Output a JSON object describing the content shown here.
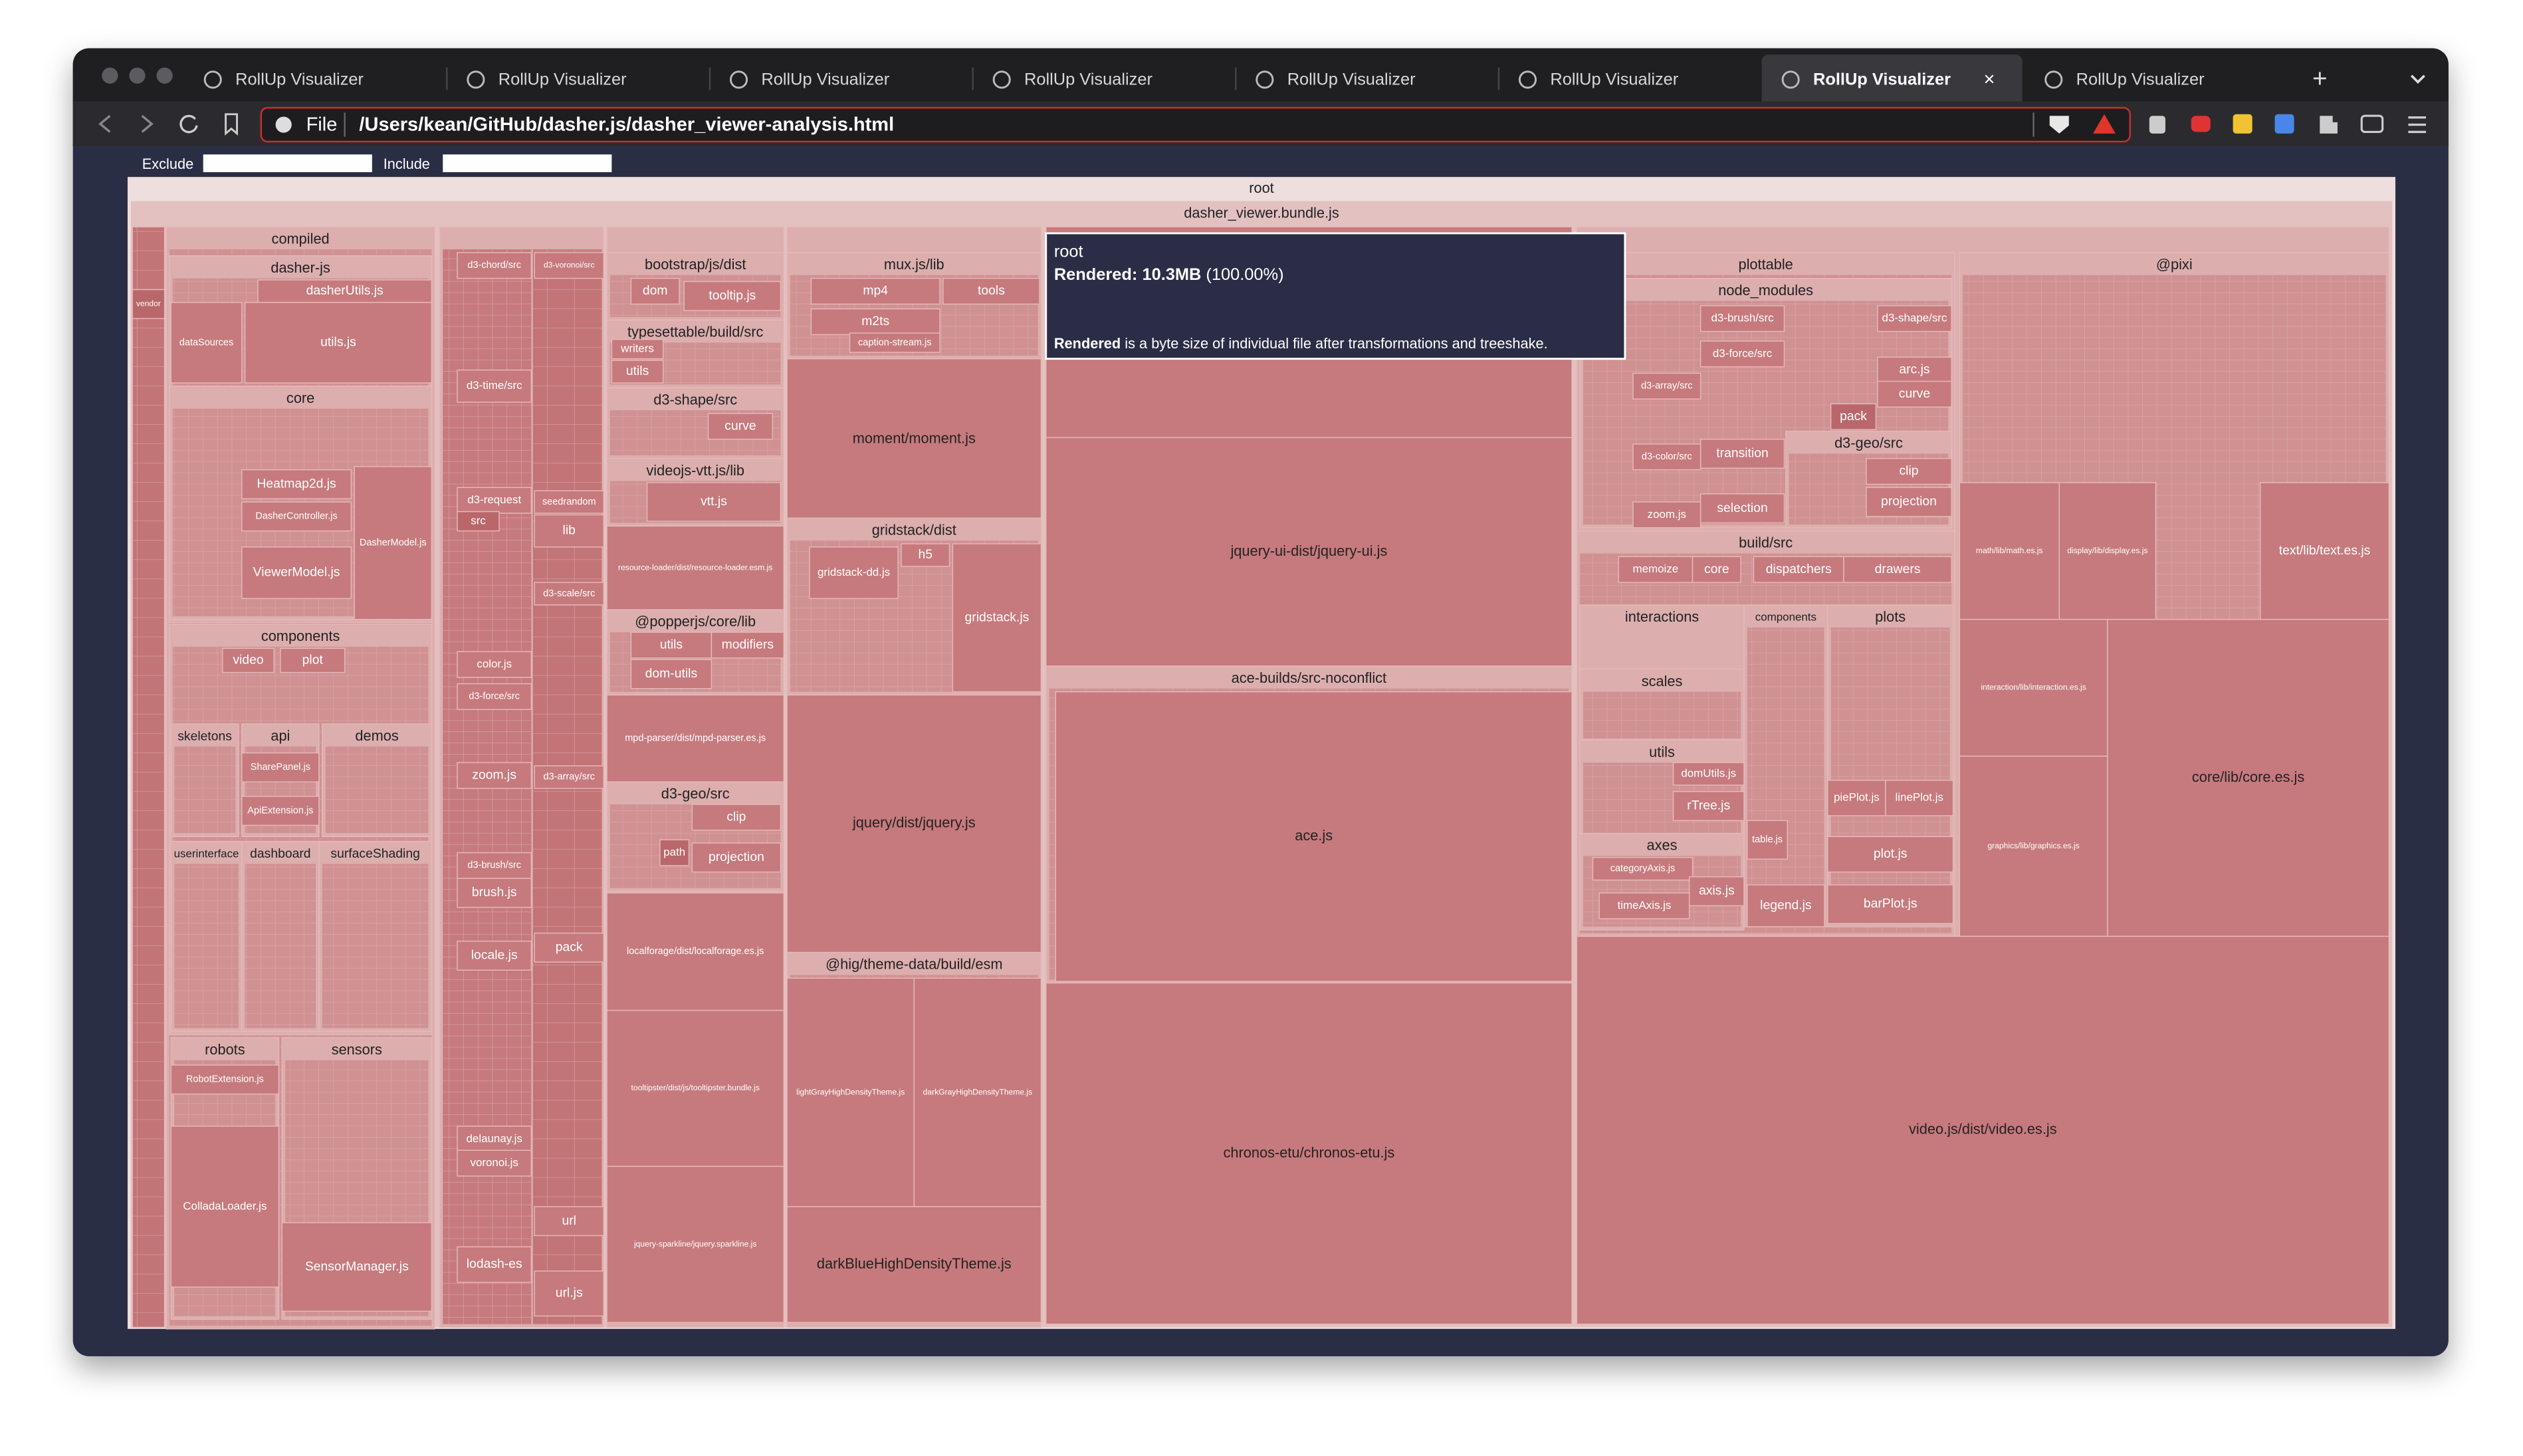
{
  "browser": {
    "tabs": [
      "RollUp Visualizer",
      "RollUp Visualizer",
      "RollUp Visualizer",
      "RollUp Visualizer",
      "RollUp Visualizer",
      "RollUp Visualizer",
      "RollUp Visualizer",
      "RollUp Visualizer"
    ],
    "address": {
      "scheme": "File",
      "path": "/Users/kean/GitHub/dasher.js/dasher_viewer-analysis.html"
    }
  },
  "filters": {
    "exclude": "Exclude",
    "include": "Include"
  },
  "treemap": {
    "root": "root",
    "bundle": "dasher_viewer.bundle.js",
    "nodes": [
      "compiled",
      "dasher-js",
      "dasherUtils.js",
      "dataSources",
      "utils.js",
      "core",
      "Heatmap2d.js",
      "DasherController.js",
      "ViewerModel.js",
      "DasherModel.js",
      "components",
      "video",
      "plot",
      "skeletons",
      "api",
      "SharePanel.js",
      "ApiExtension.js",
      "demos",
      "userinterface",
      "dashboard",
      "surfaceShading",
      "robots",
      "RobotExtension.js",
      "ColladaLoader.js",
      "sensors",
      "SensorManager.js",
      "d3-chord/src",
      "d3-voronoi/src",
      "d3-time/src",
      "d3-request",
      "src",
      "seedrandom",
      "lib",
      "d3-scale/src",
      "color.js",
      "d3-force/src",
      "zoom.js",
      "d3-array/src",
      "d3-brush/src",
      "brush.js",
      "locale.js",
      "pack",
      "delaunay.js",
      "voronoi.js",
      "url",
      "url.js",
      "lodash-es",
      "bootstrap/js/dist",
      "dom",
      "tooltip.js",
      "typesettable/build/src",
      "writers",
      "utils",
      "d3-shape/src",
      "curve",
      "videojs-vtt.js/lib",
      "vtt.js",
      "resource-loader/dist/resource-loader.esm.js",
      "@popperjs/core/lib",
      "utils",
      "modifiers",
      "dom-utils",
      "mpd-parser/dist/mpd-parser.es.js",
      "d3-geo/src",
      "clip",
      "path",
      "projection",
      "localforage/dist/localforage.es.js",
      "tooltipster/dist/js/tooltipster.bundle.js",
      "jquery-sparkline/jquery.sparkline.js",
      "mux.js/lib",
      "mp4",
      "tools",
      "m2ts",
      "caption-stream.js",
      "moment/moment.js",
      "gridstack/dist",
      "gridstack-dd.js",
      "h5",
      "gridstack.js",
      "jquery/dist/jquery.js",
      "@hig/theme-data/build/esm",
      "lightGrayHighDensityTheme.js",
      "darkGrayHighDensityTheme.js",
      "darkBlueHighDensityTheme.js",
      "jquery-ui-dist/jquery-ui.js",
      "ace-builds/src-noconflict",
      "ace.js",
      "chronos-etu/chronos-etu.js",
      "plottable",
      "node_modules",
      "d3-brush/src",
      "d3-shape/src",
      "d3-force/src",
      "arc.js",
      "d3-array/src",
      "curve",
      "pack",
      "d3-geo/src",
      "clip",
      "projection",
      "transition",
      "d3-color/src",
      "zoom.js",
      "selection",
      "build/src",
      "memoize",
      "core",
      "dispatchers",
      "drawers",
      "interactions",
      "components",
      "plots",
      "scales",
      "utils",
      "domUtils.js",
      "rTree.js",
      "axes",
      "categoryAxis.js",
      "timeAxis.js",
      "axis.js",
      "legend.js",
      "table.js",
      "piePlot.js",
      "linePlot.js",
      "plot.js",
      "barPlot.js",
      "@pixi",
      "math/lib/math.es.js",
      "display/lib/display.es.js",
      "text/lib/text.es.js",
      "interaction/lib/interaction.es.js",
      "graphics/lib/graphics.es.js",
      "core/lib/core.es.js",
      "video.js/dist/video.es.js",
      "vendor"
    ]
  },
  "tooltip": {
    "title": "root",
    "rendered": "Rendered:",
    "size": "10.3MB",
    "share": "(100.00%)",
    "note_term": "Rendered",
    "note": "is a byte size of individual file after transformations and treeshake."
  }
}
